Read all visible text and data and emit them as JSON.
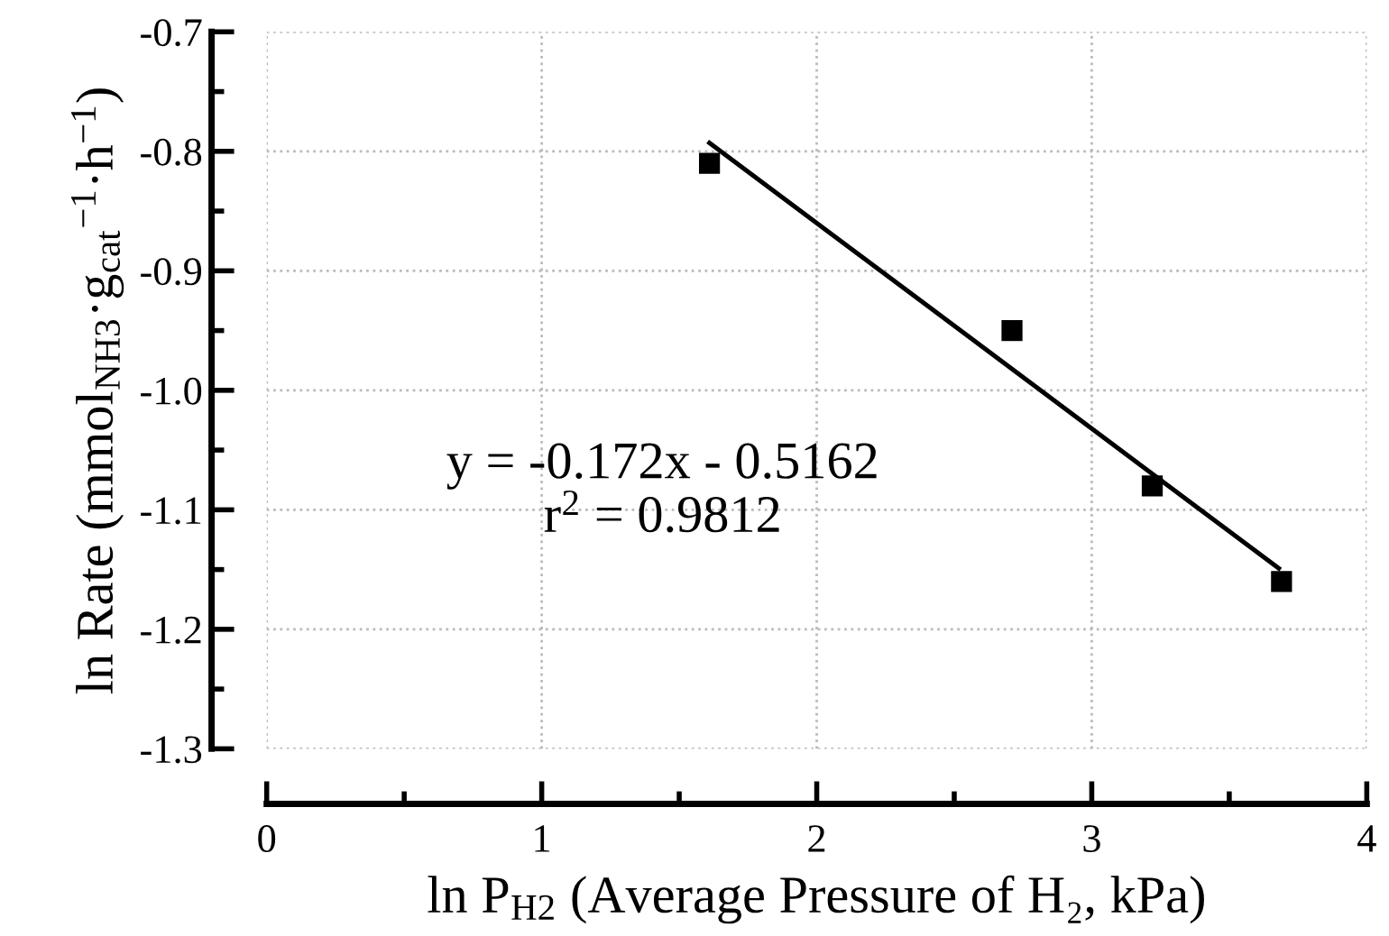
{
  "chart_data": {
    "type": "scatter",
    "xlabel": "ln P$_{H2}$ (Average Pressure of H₂, kPa)",
    "ylabel": "ln Rate (mmol$_{NH3}$·g$_{cat}$$^{−1}$·h$^{−1}$)",
    "x": [
      1.61,
      2.71,
      3.22,
      3.69
    ],
    "series": [
      {
        "type": "scatter",
        "color": "#000000",
        "marker": "square",
        "values": [
          -0.81,
          -0.95,
          -1.08,
          -1.16
        ]
      },
      {
        "type": "line",
        "color": "#000000",
        "marker": "none",
        "line_style": "solid",
        "x": [
          1.61,
          3.68
        ],
        "values": [
          -0.793,
          -1.149
        ]
      }
    ],
    "annotations": [
      "y = -0.172x - 0.5162",
      "r$^{2}$ = 0.9812"
    ],
    "xlim": [
      0,
      4
    ],
    "xticks": [
      0,
      1,
      2,
      3,
      4
    ],
    "ylim": [
      -1.3,
      -0.7
    ],
    "yticks": [
      -1.3,
      -1.2,
      -1.1,
      {
        "value": -1.0,
        "label": "-1.0"
      },
      -0.9,
      -0.8,
      -0.7
    ],
    "grid": true
  }
}
